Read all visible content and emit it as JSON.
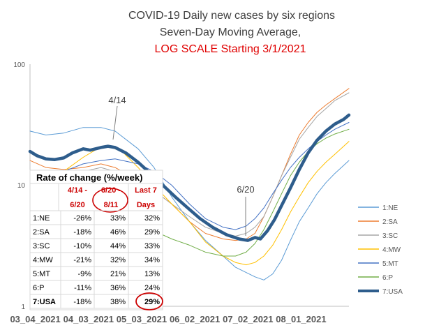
{
  "chart_data": {
    "type": "line",
    "title_lines": [
      "COVID-19 Daily new cases by six regions",
      "Seven-Day Moving Average,",
      "LOG SCALE Starting 3/1/2021"
    ],
    "title_colors": [
      "#404040",
      "#404040",
      "#e00000"
    ],
    "xlabel": "",
    "ylabel": "",
    "y_scale": "log",
    "ylim": [
      1,
      100
    ],
    "y_ticks": [
      1,
      10,
      100
    ],
    "y_tick_labels": [
      "1",
      "10",
      "100"
    ],
    "xlim": [
      "2021-03-01",
      "2021-08-28"
    ],
    "x_ticks": [
      "2021-03-04",
      "2021-04-03",
      "2021-05-03",
      "2021-06-02",
      "2021-07-02",
      "2021-08-01"
    ],
    "x_tick_labels": [
      "03_04_2021",
      "04_03_2021",
      "05_03_2021",
      "06_02_2021",
      "07_02_2021",
      "08_01_2021"
    ],
    "grid": false,
    "legend_position": "right",
    "series": [
      {
        "name": "1:NE",
        "color": "#5b9bd5",
        "width": 1,
        "points": [
          [
            "2021-03-01",
            28
          ],
          [
            "2021-03-10",
            26
          ],
          [
            "2021-03-20",
            27
          ],
          [
            "2021-03-31",
            30
          ],
          [
            "2021-04-10",
            30
          ],
          [
            "2021-04-18",
            28
          ],
          [
            "2021-05-01",
            20
          ],
          [
            "2021-05-10",
            14
          ],
          [
            "2021-05-20",
            8
          ],
          [
            "2021-05-30",
            5
          ],
          [
            "2021-06-08",
            3.5
          ],
          [
            "2021-06-18",
            2.6
          ],
          [
            "2021-06-25",
            2.1
          ],
          [
            "2021-07-01",
            1.9
          ],
          [
            "2021-07-06",
            1.75
          ],
          [
            "2021-07-11",
            1.65
          ],
          [
            "2021-07-16",
            1.85
          ],
          [
            "2021-07-21",
            2.4
          ],
          [
            "2021-07-26",
            3.5
          ],
          [
            "2021-07-31",
            5
          ],
          [
            "2021-08-05",
            6.5
          ],
          [
            "2021-08-10",
            8.5
          ],
          [
            "2021-08-15",
            10.5
          ],
          [
            "2021-08-20",
            12.5
          ],
          [
            "2021-08-28",
            16
          ]
        ]
      },
      {
        "name": "2:SA",
        "color": "#ed7d31",
        "width": 1,
        "points": [
          [
            "2021-03-01",
            16
          ],
          [
            "2021-03-10",
            14
          ],
          [
            "2021-03-20",
            13.5
          ],
          [
            "2021-03-31",
            14
          ],
          [
            "2021-04-10",
            15
          ],
          [
            "2021-04-18",
            14
          ],
          [
            "2021-05-01",
            11
          ],
          [
            "2021-05-10",
            9
          ],
          [
            "2021-05-20",
            7
          ],
          [
            "2021-05-30",
            5
          ],
          [
            "2021-06-08",
            4
          ],
          [
            "2021-06-18",
            3.6
          ],
          [
            "2021-06-25",
            3.5
          ],
          [
            "2021-07-01",
            3.6
          ],
          [
            "2021-07-06",
            4
          ],
          [
            "2021-07-11",
            5.5
          ],
          [
            "2021-07-16",
            8
          ],
          [
            "2021-07-21",
            12
          ],
          [
            "2021-07-26",
            18
          ],
          [
            "2021-07-31",
            26
          ],
          [
            "2021-08-05",
            33
          ],
          [
            "2021-08-10",
            40
          ],
          [
            "2021-08-15",
            46
          ],
          [
            "2021-08-20",
            52
          ],
          [
            "2021-08-28",
            63
          ]
        ]
      },
      {
        "name": "3:SC",
        "color": "#a5a5a5",
        "width": 1,
        "points": [
          [
            "2021-03-01",
            13
          ],
          [
            "2021-03-10",
            12
          ],
          [
            "2021-03-20",
            12
          ],
          [
            "2021-03-31",
            13
          ],
          [
            "2021-04-10",
            14
          ],
          [
            "2021-04-18",
            13
          ],
          [
            "2021-05-01",
            11
          ],
          [
            "2021-05-10",
            9
          ],
          [
            "2021-05-20",
            7
          ],
          [
            "2021-05-30",
            5.5
          ],
          [
            "2021-06-08",
            4.5
          ],
          [
            "2021-06-18",
            4
          ],
          [
            "2021-06-25",
            3.8
          ],
          [
            "2021-07-01",
            4
          ],
          [
            "2021-07-06",
            4.5
          ],
          [
            "2021-07-11",
            5.5
          ],
          [
            "2021-07-16",
            8
          ],
          [
            "2021-07-21",
            12
          ],
          [
            "2021-07-26",
            17
          ],
          [
            "2021-07-31",
            24
          ],
          [
            "2021-08-05",
            30
          ],
          [
            "2021-08-10",
            37
          ],
          [
            "2021-08-15",
            43
          ],
          [
            "2021-08-20",
            50
          ],
          [
            "2021-08-28",
            58
          ]
        ]
      },
      {
        "name": "4:MW",
        "color": "#ffc000",
        "width": 1,
        "points": [
          [
            "2021-03-01",
            13
          ],
          [
            "2021-03-10",
            12
          ],
          [
            "2021-03-20",
            13
          ],
          [
            "2021-03-31",
            17
          ],
          [
            "2021-04-08",
            20
          ],
          [
            "2021-04-14",
            21
          ],
          [
            "2021-04-22",
            19
          ],
          [
            "2021-05-01",
            14
          ],
          [
            "2021-05-10",
            10
          ],
          [
            "2021-05-20",
            7
          ],
          [
            "2021-05-30",
            5
          ],
          [
            "2021-06-08",
            3.4
          ],
          [
            "2021-06-18",
            2.6
          ],
          [
            "2021-06-25",
            2.3
          ],
          [
            "2021-07-01",
            2.2
          ],
          [
            "2021-07-06",
            2.3
          ],
          [
            "2021-07-11",
            2.6
          ],
          [
            "2021-07-16",
            3.2
          ],
          [
            "2021-07-21",
            4.3
          ],
          [
            "2021-07-26",
            6
          ],
          [
            "2021-07-31",
            8
          ],
          [
            "2021-08-05",
            10.5
          ],
          [
            "2021-08-10",
            13
          ],
          [
            "2021-08-15",
            15.5
          ],
          [
            "2021-08-20",
            18
          ],
          [
            "2021-08-28",
            23
          ]
        ]
      },
      {
        "name": "5:MT",
        "color": "#4472c4",
        "width": 1,
        "points": [
          [
            "2021-03-01",
            13
          ],
          [
            "2021-03-10",
            12
          ],
          [
            "2021-03-20",
            13
          ],
          [
            "2021-03-31",
            15
          ],
          [
            "2021-04-10",
            16
          ],
          [
            "2021-04-18",
            16.5
          ],
          [
            "2021-05-01",
            15
          ],
          [
            "2021-05-10",
            13
          ],
          [
            "2021-05-20",
            10
          ],
          [
            "2021-05-30",
            7
          ],
          [
            "2021-06-08",
            5.3
          ],
          [
            "2021-06-18",
            4.5
          ],
          [
            "2021-06-25",
            4.3
          ],
          [
            "2021-07-01",
            4.6
          ],
          [
            "2021-07-06",
            5.3
          ],
          [
            "2021-07-11",
            6.5
          ],
          [
            "2021-07-16",
            8.5
          ],
          [
            "2021-07-21",
            11
          ],
          [
            "2021-07-26",
            14
          ],
          [
            "2021-07-31",
            17
          ],
          [
            "2021-08-05",
            20
          ],
          [
            "2021-08-10",
            23
          ],
          [
            "2021-08-15",
            26
          ],
          [
            "2021-08-20",
            29
          ],
          [
            "2021-08-28",
            33
          ]
        ]
      },
      {
        "name": "6:P",
        "color": "#70ad47",
        "width": 1,
        "points": [
          [
            "2021-03-01",
            9
          ],
          [
            "2021-03-10",
            7
          ],
          [
            "2021-03-20",
            6
          ],
          [
            "2021-03-31",
            6
          ],
          [
            "2021-04-10",
            6.2
          ],
          [
            "2021-04-18",
            6
          ],
          [
            "2021-05-01",
            5
          ],
          [
            "2021-05-10",
            4.2
          ],
          [
            "2021-05-20",
            3.6
          ],
          [
            "2021-05-30",
            3.2
          ],
          [
            "2021-06-08",
            2.8
          ],
          [
            "2021-06-18",
            2.6
          ],
          [
            "2021-06-25",
            2.6
          ],
          [
            "2021-07-01",
            2.8
          ],
          [
            "2021-07-06",
            3.3
          ],
          [
            "2021-07-11",
            4.3
          ],
          [
            "2021-07-16",
            6
          ],
          [
            "2021-07-21",
            8.5
          ],
          [
            "2021-07-26",
            12
          ],
          [
            "2021-07-31",
            15.5
          ],
          [
            "2021-08-05",
            19
          ],
          [
            "2021-08-10",
            22
          ],
          [
            "2021-08-15",
            24.5
          ],
          [
            "2021-08-20",
            26.5
          ],
          [
            "2021-08-28",
            29
          ]
        ]
      },
      {
        "name": "7:USA",
        "color": "#2e5d8c",
        "width": 4.5,
        "points": [
          [
            "2021-03-01",
            19
          ],
          [
            "2021-03-05",
            17.5
          ],
          [
            "2021-03-10",
            16.5
          ],
          [
            "2021-03-15",
            16.3
          ],
          [
            "2021-03-20",
            16.8
          ],
          [
            "2021-03-25",
            18.5
          ],
          [
            "2021-03-31",
            20
          ],
          [
            "2021-04-04",
            19.5
          ],
          [
            "2021-04-10",
            20.5
          ],
          [
            "2021-04-14",
            21
          ],
          [
            "2021-04-18",
            20.5
          ],
          [
            "2021-04-24",
            18.5
          ],
          [
            "2021-05-01",
            15.5
          ],
          [
            "2021-05-08",
            12.5
          ],
          [
            "2021-05-15",
            10
          ],
          [
            "2021-05-22",
            8
          ],
          [
            "2021-05-29",
            6.5
          ],
          [
            "2021-06-05",
            5.3
          ],
          [
            "2021-06-12",
            4.5
          ],
          [
            "2021-06-20",
            3.9
          ],
          [
            "2021-06-27",
            3.6
          ],
          [
            "2021-07-02",
            3.5
          ],
          [
            "2021-07-06",
            3.7
          ],
          [
            "2021-07-09",
            3.6
          ],
          [
            "2021-07-13",
            4.2
          ],
          [
            "2021-07-17",
            5.2
          ],
          [
            "2021-07-21",
            6.8
          ],
          [
            "2021-07-26",
            9.5
          ],
          [
            "2021-07-31",
            13.5
          ],
          [
            "2021-08-05",
            18.5
          ],
          [
            "2021-08-10",
            23.5
          ],
          [
            "2021-08-15",
            28
          ],
          [
            "2021-08-20",
            32
          ],
          [
            "2021-08-25",
            35
          ],
          [
            "2021-08-28",
            38
          ]
        ]
      }
    ],
    "annotations": [
      {
        "text": "4/14",
        "x": "2021-04-14",
        "y": 21
      },
      {
        "text": "6/20",
        "x": "2021-06-20",
        "y": 3.9
      }
    ],
    "table": {
      "title": "Rate of change (%/week)",
      "header_color": "#cc0000",
      "columns": [
        "4/14 - 6/20",
        "6/20 - 8/11",
        "Last 7 Days"
      ],
      "column_lines": [
        [
          "4/14 -",
          "6/20"
        ],
        [
          "6/20 -",
          "8/11"
        ],
        [
          "Last 7",
          "Days"
        ]
      ],
      "rows": [
        {
          "region": "1:NE",
          "values": [
            "-26%",
            "33%",
            "32%"
          ]
        },
        {
          "region": "2:SA",
          "values": [
            "-18%",
            "46%",
            "29%"
          ]
        },
        {
          "region": "3:SC",
          "values": [
            "-10%",
            "44%",
            "33%"
          ]
        },
        {
          "region": "4:MW",
          "values": [
            "-21%",
            "32%",
            "34%"
          ]
        },
        {
          "region": "5:MT",
          "values": [
            "-9%",
            "21%",
            "13%"
          ]
        },
        {
          "region": "6:P",
          "values": [
            "-11%",
            "36%",
            "24%"
          ]
        },
        {
          "region": "7:USA",
          "values": [
            "-18%",
            "38%",
            "29%"
          ]
        }
      ]
    }
  }
}
